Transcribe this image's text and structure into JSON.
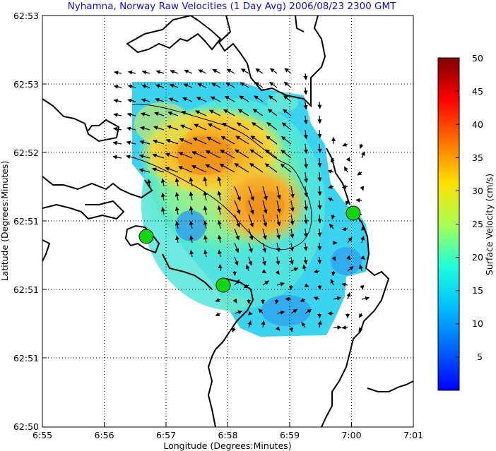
{
  "chart_data": {
    "type": "heatmap",
    "title": "Nyhamna, Norway Raw Velocities (1 Day Avg) 2006/08/23 2300 GMT",
    "xlabel": "Longitude (Degrees:Minutes)",
    "ylabel": "Latitude (Degrees:Minutes)",
    "x_ticks": [
      "6:55",
      "6:56",
      "6:57",
      "6:58",
      "6:59",
      "7:00",
      "7:01"
    ],
    "y_ticks": [
      "62:53",
      "62:53",
      "62:52",
      "62:51",
      "62:51",
      "62:51",
      "62:50"
    ],
    "x_range_min": [
      55,
      61
    ],
    "grid": true,
    "colorbar": {
      "label": "Surface Velocity (cm/s)",
      "range": [
        0,
        50
      ],
      "ticks": [
        "50",
        "45",
        "40",
        "35",
        "30",
        "25",
        "20",
        "15",
        "10",
        "5"
      ]
    },
    "stations": [
      {
        "lon_min": 56.7,
        "lat_frac": 0.339
      },
      {
        "lon_min": 57.9,
        "lat_frac": 0.229
      },
      {
        "lon_min": 60.0,
        "lat_frac": 0.449
      }
    ],
    "speed_contour_cm_s": 30
  }
}
